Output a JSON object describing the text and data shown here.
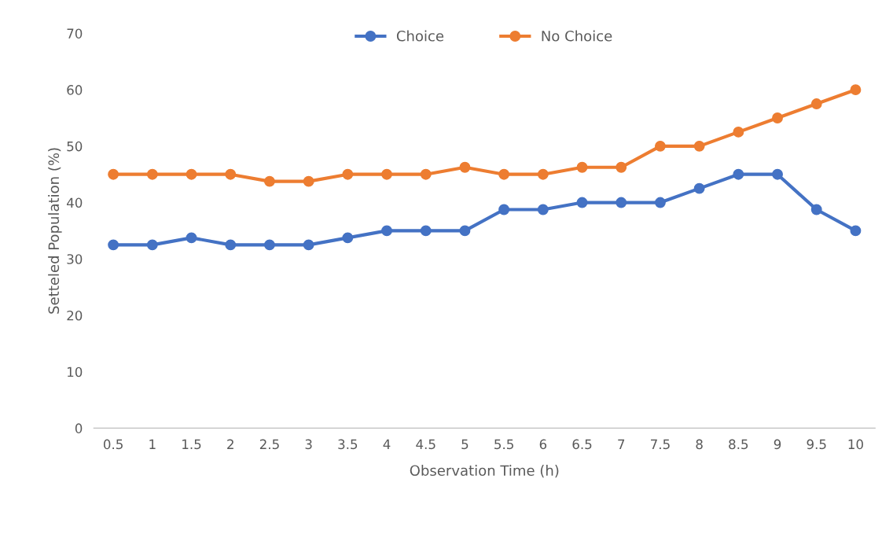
{
  "chart_data": {
    "type": "line",
    "xlabel": "Observation Time (h)",
    "ylabel": "Setteled Population (%)",
    "categories": [
      "0.5",
      "1",
      "1.5",
      "2",
      "2.5",
      "3",
      "3.5",
      "4",
      "4.5",
      "5",
      "5.5",
      "6",
      "6.5",
      "7",
      "7.5",
      "8",
      "8.5",
      "9",
      "9.5",
      "10"
    ],
    "series": [
      {
        "name": "Choice",
        "color": "#4472c4",
        "values": [
          32.5,
          32.5,
          33.75,
          32.5,
          32.5,
          32.5,
          33.75,
          35,
          35,
          35,
          38.75,
          38.75,
          40,
          40,
          40,
          42.5,
          45,
          45,
          38.75,
          35
        ]
      },
      {
        "name": "No Choice",
        "color": "#ed7d31",
        "values": [
          45,
          45,
          45,
          45,
          43.75,
          43.75,
          45,
          45,
          45,
          46.25,
          45,
          45,
          46.25,
          46.25,
          50,
          50,
          52.5,
          55,
          57.5,
          60
        ]
      }
    ],
    "ylim": [
      0,
      70
    ],
    "yticks": [
      0,
      10,
      20,
      30,
      40,
      50,
      60,
      70
    ],
    "grid": false,
    "legend": "top",
    "marker": "circle",
    "line_style": "solid"
  }
}
